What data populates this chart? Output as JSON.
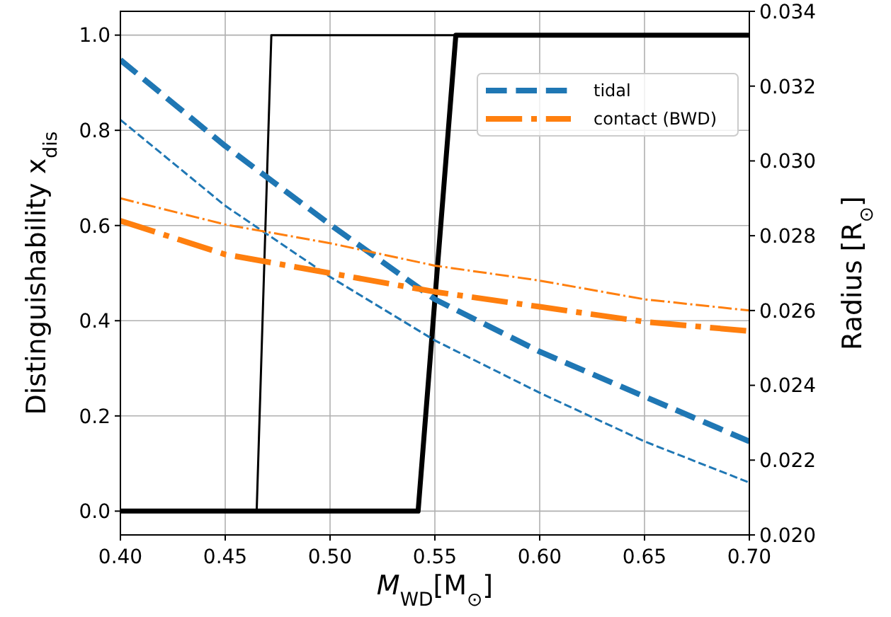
{
  "chart_data": {
    "type": "line",
    "xlabel": "M$_{WD}$[M$_{⊙}$]",
    "ylabel": "Distinguishability x$_{dis}$",
    "y2label": "Radius [R$_{⊙}$]",
    "xlim": [
      0.4,
      0.7
    ],
    "xticks": [
      {
        "value": 0.4,
        "label": "0.40"
      },
      {
        "value": 0.45,
        "label": "0.45"
      },
      {
        "value": 0.5,
        "label": "0.50"
      },
      {
        "value": 0.55,
        "label": "0.55"
      },
      {
        "value": 0.6,
        "label": "0.60"
      },
      {
        "value": 0.65,
        "label": "0.65"
      },
      {
        "value": 0.7,
        "label": "0.70"
      }
    ],
    "ylim": [
      -0.05,
      1.05
    ],
    "yticks": [
      {
        "value": 0,
        "label": "0.0"
      },
      {
        "value": 0.2,
        "label": "0.2"
      },
      {
        "value": 0.4,
        "label": "0.4"
      },
      {
        "value": 0.6,
        "label": "0.6"
      },
      {
        "value": 0.8,
        "label": "0.8"
      },
      {
        "value": 1,
        "label": "1.0"
      }
    ],
    "y2lim": [
      0.02,
      0.034
    ],
    "y2ticks": [
      {
        "value": 0.02,
        "label": "0.020"
      },
      {
        "value": 0.022,
        "label": "0.022"
      },
      {
        "value": 0.024,
        "label": "0.024"
      },
      {
        "value": 0.026,
        "label": "0.026"
      },
      {
        "value": 0.028,
        "label": "0.028"
      },
      {
        "value": 0.03,
        "label": "0.030"
      },
      {
        "value": 0.032,
        "label": "0.032"
      },
      {
        "value": 0.034,
        "label": "0.034"
      }
    ],
    "grid": true,
    "legend": "top right",
    "marker": "none",
    "series": [
      {
        "color": "#000000",
        "line_style": "solid",
        "x": [
          0.4,
          0.542,
          0.56,
          0.7
        ],
        "values": [
          0,
          0,
          1,
          1
        ]
      },
      {
        "color": "#000000",
        "line_style": "solid",
        "x": [
          0.4,
          0.465,
          0.472,
          0.7
        ],
        "values": [
          0,
          0,
          1,
          1
        ]
      },
      {
        "name": "tidal",
        "color": "#1f77b4",
        "line_style": "dashed",
        "axis": "y2",
        "x": [
          0.4,
          0.45,
          0.5,
          0.55,
          0.6,
          0.65,
          0.7
        ],
        "values": [
          0.0327,
          0.0304,
          0.0283,
          0.0263,
          0.0249,
          0.0237,
          0.0225
        ]
      },
      {
        "color": "#1f77b4",
        "line_style": "dashed",
        "axis": "y2",
        "x": [
          0.4,
          0.45,
          0.5,
          0.55,
          0.6,
          0.65,
          0.7
        ],
        "values": [
          0.0311,
          0.0288,
          0.0269,
          0.0252,
          0.0238,
          0.0225,
          0.0214
        ]
      },
      {
        "name": "contact (BWD)",
        "color": "#ff7f0e",
        "line_style": "dashdot",
        "axis": "y2",
        "x": [
          0.4,
          0.45,
          0.5,
          0.55,
          0.6,
          0.65,
          0.7
        ],
        "values": [
          0.0284,
          0.0275,
          0.027,
          0.0265,
          0.0261,
          0.0257,
          0.02545
        ]
      },
      {
        "color": "#ff7f0e",
        "line_style": "dashdot",
        "axis": "y2",
        "x": [
          0.4,
          0.45,
          0.5,
          0.55,
          0.6,
          0.65,
          0.7
        ],
        "values": [
          0.029,
          0.0283,
          0.0278,
          0.0272,
          0.0268,
          0.0263,
          0.026
        ]
      }
    ]
  }
}
